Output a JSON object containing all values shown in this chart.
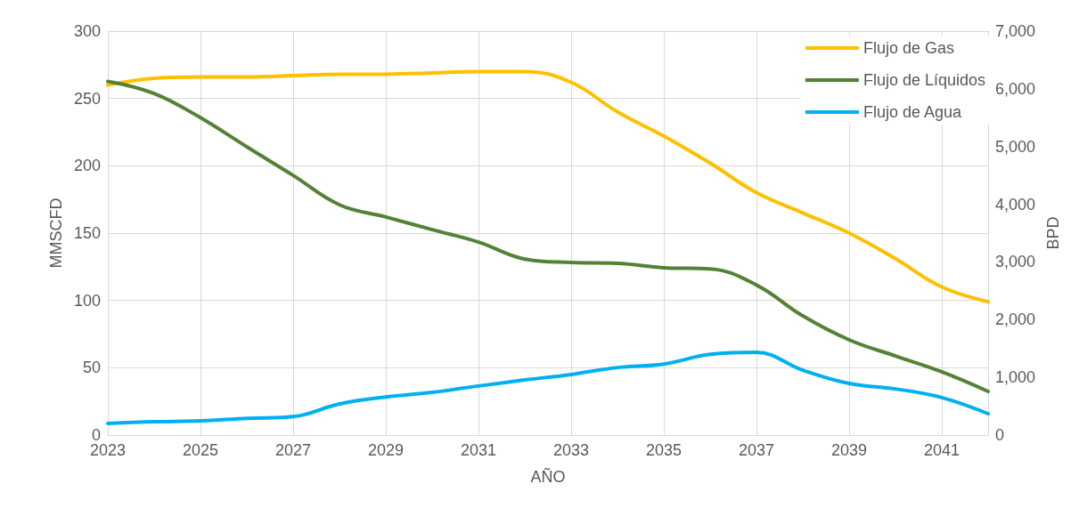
{
  "chart_data": {
    "type": "line",
    "xlabel": "AÑO",
    "ylabel": "MMSCFD",
    "y2label": "BPD",
    "x": [
      2023,
      2024,
      2025,
      2026,
      2027,
      2028,
      2029,
      2030,
      2031,
      2032,
      2033,
      2034,
      2035,
      2036,
      2037,
      2038,
      2039,
      2040,
      2041,
      2042
    ],
    "xlim": [
      2023,
      2042
    ],
    "xticks": [
      2023,
      2025,
      2027,
      2029,
      2031,
      2033,
      2035,
      2037,
      2039,
      2041
    ],
    "ylim": [
      0,
      300
    ],
    "yticks": [
      0,
      50,
      100,
      150,
      200,
      250,
      300
    ],
    "y2lim": [
      0,
      7000
    ],
    "y2ticks": [
      0,
      {
        "value": 1000,
        "label": "1,000"
      },
      {
        "value": 2000,
        "label": "2,000"
      },
      {
        "value": 3000,
        "label": "3,000"
      },
      {
        "value": 4000,
        "label": "4,000"
      },
      {
        "value": 5000,
        "label": "5,000"
      },
      {
        "value": 6000,
        "label": "6,000"
      },
      {
        "value": 7000,
        "label": "7,000"
      }
    ],
    "series": [
      {
        "name": "Flujo de Gas",
        "color": "#ffc000",
        "values": [
          260,
          265,
          266,
          266,
          267,
          268,
          268,
          269,
          270,
          270,
          262,
          240,
          222,
          202,
          180,
          165,
          150,
          131,
          110,
          99
        ]
      },
      {
        "name": "Flujo de Líquidos",
        "color": "#548235",
        "axis": "y2",
        "values": [
          6130,
          5920,
          5500,
          4995,
          4500,
          3990,
          3780,
          3560,
          3345,
          3050,
          2990,
          2975,
          2900,
          2880,
          2600,
          2065,
          1650,
          1370,
          1095,
          755
        ]
      },
      {
        "name": "Flujo de Agua",
        "color": "#00b0f0",
        "axis": "y2",
        "values": [
          200,
          230,
          245,
          290,
          320,
          540,
          660,
          740,
          850,
          955,
          1050,
          1170,
          1230,
          1400,
          1435,
          1125,
          895,
          800,
          650,
          370
        ]
      }
    ],
    "grid": true,
    "legend": "top right",
    "marker": "none",
    "line_style": "solid"
  }
}
